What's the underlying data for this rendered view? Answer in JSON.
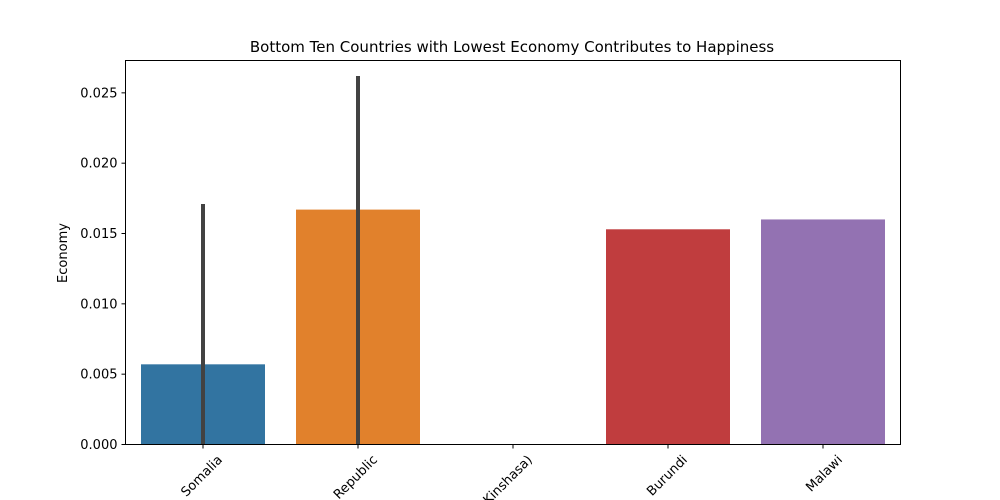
{
  "chart_data": {
    "type": "bar",
    "title": "Bottom Ten Countries with Lowest Economy Contributes to Happiness",
    "xlabel": "",
    "ylabel": "Economy",
    "ylim": [
      0,
      0.0273
    ],
    "yticks": [
      "0.000",
      "0.005",
      "0.010",
      "0.015",
      "0.020",
      "0.025"
    ],
    "categories": [
      "Somalia",
      "Republic",
      "Kinshasa)",
      "Burundi",
      "Malawi"
    ],
    "values": [
      0.0057,
      0.0167,
      0.0,
      0.0153,
      0.016
    ],
    "error_bars": [
      [
        0.0,
        0.0171
      ],
      [
        0.0,
        0.0262
      ],
      null,
      null,
      null
    ],
    "colors": [
      "#3274a1",
      "#e1812c",
      "#3a923a",
      "#c03d3e",
      "#9372b2"
    ],
    "error_color": "#424242",
    "grid": false,
    "legend": "none"
  }
}
